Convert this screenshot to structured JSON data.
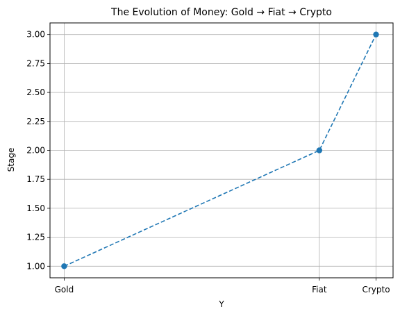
{
  "chart_data": {
    "type": "line",
    "title": "The Evolution of Money: Gold → Fiat → Crypto",
    "xlabel": "Y",
    "ylabel": "Stage",
    "x_tick_labels": [
      "Gold",
      "Fiat",
      "Crypto"
    ],
    "x_positions": [
      0,
      9,
      11
    ],
    "xlim": [
      -0.5,
      11.6
    ],
    "ylim": [
      0.9,
      3.1
    ],
    "y_ticks": [
      "1.00",
      "1.25",
      "1.50",
      "1.75",
      "2.00",
      "2.25",
      "2.50",
      "2.75",
      "3.00"
    ],
    "grid": true,
    "series": [
      {
        "x": [
          0,
          9,
          11
        ],
        "values": [
          1,
          2,
          3
        ],
        "color": "#1f77b4",
        "line_style": "dashed",
        "marker": "circle"
      }
    ]
  }
}
